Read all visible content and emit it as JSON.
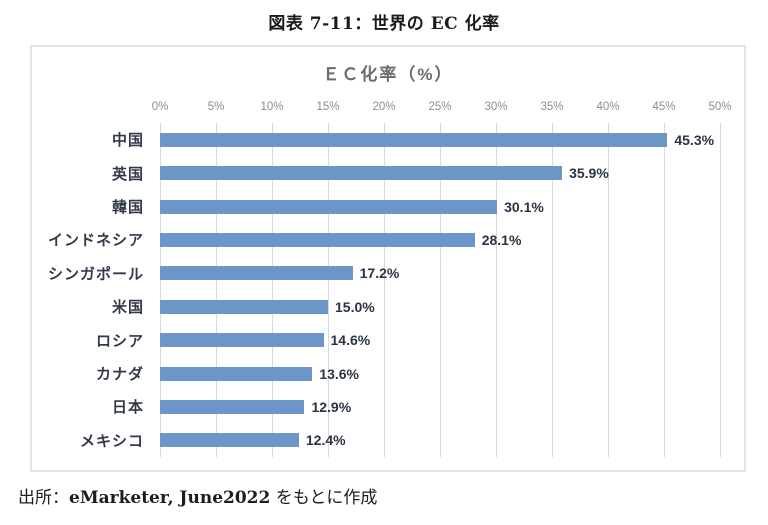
{
  "figure_title": "図表 7-11：世界の EC 化率",
  "source": {
    "prefix": "出所：",
    "reference": "eMarketer, June2022",
    "suffix": " をもとに作成"
  },
  "colors": {
    "bar": "#6c96c8",
    "gridline": "#d9d9d9",
    "axis_text": "#8c8c8c",
    "label_text": "#32394a",
    "chart_title_text": "#6b6b6b",
    "frame_border": "#e4e4e4"
  },
  "chart_data": {
    "type": "bar",
    "orientation": "horizontal",
    "title": "ＥＣ化率（%）",
    "categories": [
      "中国",
      "英国",
      "韓国",
      "インドネシア",
      "シンガポール",
      "米国",
      "ロシア",
      "カナダ",
      "日本",
      "メキシコ"
    ],
    "values": [
      45.3,
      35.9,
      30.1,
      28.1,
      17.2,
      15.0,
      14.6,
      13.6,
      12.9,
      12.4
    ],
    "value_labels": [
      "45.3%",
      "35.9%",
      "30.1%",
      "28.1%",
      "17.2%",
      "15.0%",
      "14.6%",
      "13.6%",
      "12.9%",
      "12.4%"
    ],
    "xlim": [
      0,
      50
    ],
    "x_tick_values": [
      0,
      5,
      10,
      15,
      20,
      25,
      30,
      35,
      40,
      45,
      50
    ],
    "x_tick_labels": [
      "0%",
      "5%",
      "10%",
      "15%",
      "20%",
      "25%",
      "30%",
      "35%",
      "40%",
      "45%",
      "50%"
    ],
    "grid": "vertical",
    "legend": "none",
    "axis_position": "top"
  }
}
